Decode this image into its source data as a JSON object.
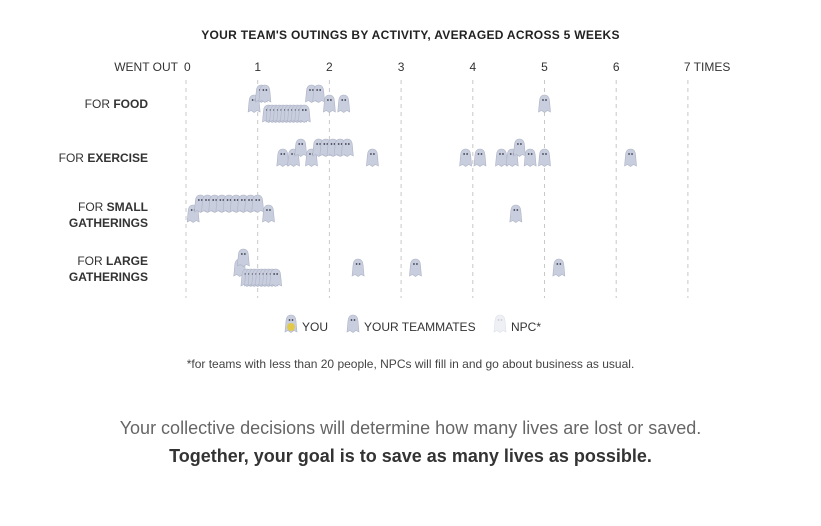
{
  "chart_data": {
    "type": "scatter",
    "title": "YOUR TEAM'S OUTINGS BY ACTIVITY, AVERAGED ACROSS 5 WEEKS",
    "x_axis_prefix": "WENT OUT",
    "x_ticks": [
      "0",
      "1",
      "2",
      "3",
      "4",
      "5",
      "6",
      "7 TIMES"
    ],
    "xlim": [
      0,
      7
    ],
    "grid": true,
    "categories": [
      {
        "prefix": "FOR ",
        "bold": "FOOD",
        "line2": ""
      },
      {
        "prefix": "FOR ",
        "bold": "EXERCISE",
        "line2": ""
      },
      {
        "prefix": "FOR ",
        "bold": "SMALL",
        "line2": "GATHERINGS"
      },
      {
        "prefix": "FOR ",
        "bold": "LARGE",
        "line2": "GATHERINGS"
      }
    ],
    "series": [
      {
        "name": "YOUR TEAMMATES",
        "color": "#c9cede",
        "points": [
          [
            [
              0.95,
              0
            ],
            [
              1.05,
              0
            ],
            [
              1.1,
              0
            ],
            [
              1.15,
              0
            ],
            [
              1.2,
              0
            ],
            [
              1.25,
              0
            ],
            [
              1.3,
              0
            ],
            [
              1.35,
              0
            ],
            [
              1.4,
              0
            ],
            [
              1.45,
              0
            ],
            [
              1.5,
              0
            ],
            [
              1.55,
              0
            ],
            [
              1.6,
              0
            ],
            [
              1.65,
              0
            ],
            [
              1.75,
              0
            ],
            [
              1.85,
              0
            ],
            [
              2.0,
              0
            ],
            [
              2.2,
              0
            ],
            [
              5.0,
              0
            ]
          ],
          [
            [
              1.35,
              1
            ],
            [
              1.5,
              1
            ],
            [
              1.6,
              1
            ],
            [
              1.75,
              1
            ],
            [
              1.85,
              1
            ],
            [
              1.95,
              1
            ],
            [
              2.05,
              1
            ],
            [
              2.15,
              1
            ],
            [
              2.25,
              1
            ],
            [
              2.6,
              1
            ],
            [
              3.9,
              1
            ],
            [
              4.1,
              1
            ],
            [
              4.4,
              1
            ],
            [
              4.55,
              1
            ],
            [
              4.65,
              1
            ],
            [
              4.8,
              1
            ],
            [
              5.0,
              1
            ],
            [
              6.2,
              1
            ]
          ],
          [
            [
              0.1,
              2
            ],
            [
              0.2,
              2
            ],
            [
              0.3,
              2
            ],
            [
              0.4,
              2
            ],
            [
              0.5,
              2
            ],
            [
              0.6,
              2
            ],
            [
              0.7,
              2
            ],
            [
              0.8,
              2
            ],
            [
              0.9,
              2
            ],
            [
              1.0,
              2
            ],
            [
              1.15,
              2
            ],
            [
              4.6,
              2
            ]
          ],
          [
            [
              0.75,
              3
            ],
            [
              0.8,
              3
            ],
            [
              0.85,
              3
            ],
            [
              0.9,
              3
            ],
            [
              0.95,
              3
            ],
            [
              1.0,
              3
            ],
            [
              1.05,
              3
            ],
            [
              1.1,
              3
            ],
            [
              1.15,
              3
            ],
            [
              1.2,
              3
            ],
            [
              1.25,
              3
            ],
            [
              2.4,
              3
            ],
            [
              3.2,
              3
            ],
            [
              5.2,
              3
            ]
          ]
        ]
      }
    ],
    "legend": [
      {
        "name": "YOU",
        "color": "#e3c94a"
      },
      {
        "name": "YOUR TEAMMATES",
        "color": "#c9cede"
      },
      {
        "name": "NPC*",
        "color": "#eef0f5"
      }
    ],
    "legend_placement": "bottom"
  },
  "footnote": "*for teams with less than 20 people, NPCs will fill in and go about business as usual.",
  "message": {
    "line1": "Your collective decisions will determine how many lives are lost or saved.",
    "line2": "Together, your goal is to save as many lives as possible."
  }
}
